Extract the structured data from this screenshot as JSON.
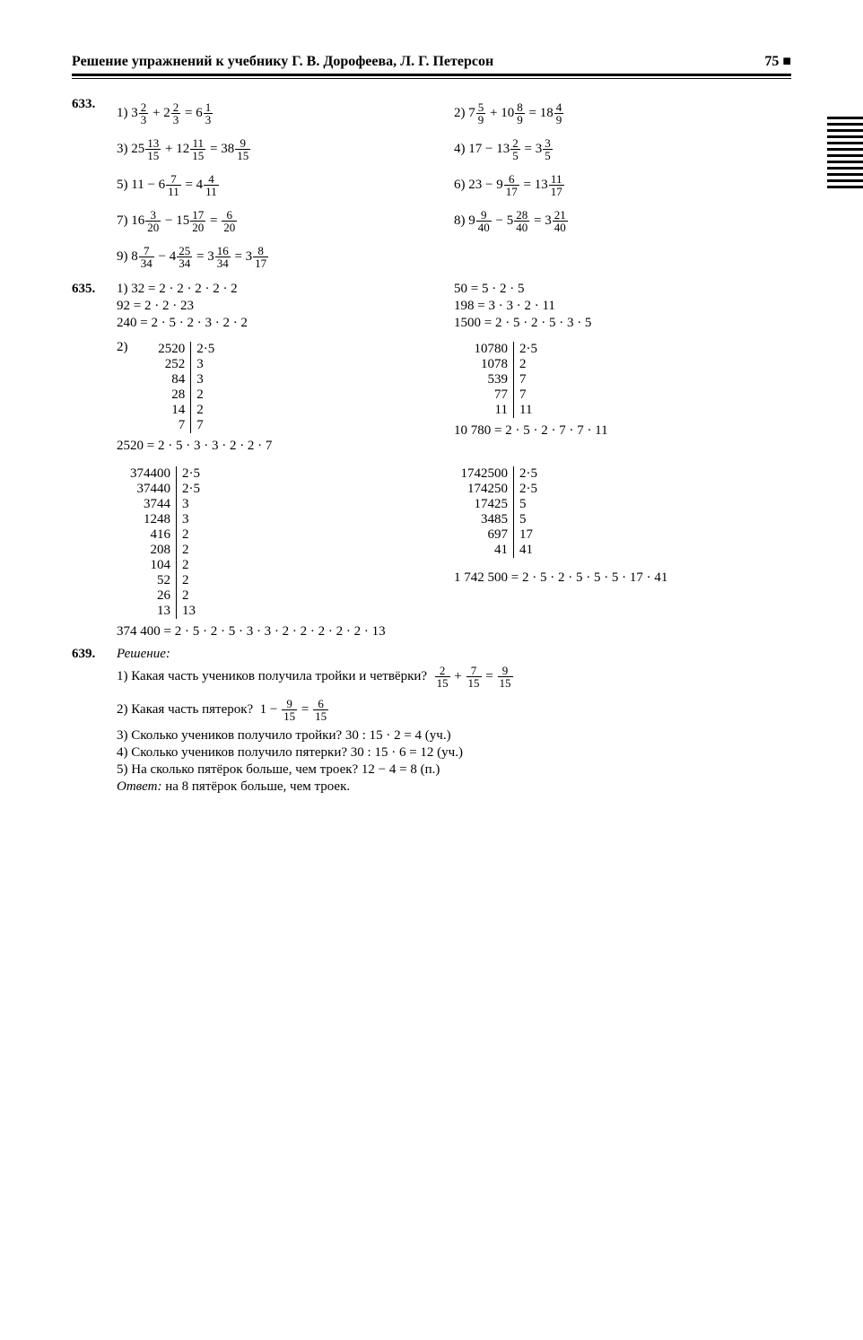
{
  "header": {
    "title": "Решение упражнений к учебнику Г. В. Дорофеева, Л. Г. Петерсон",
    "pagenum": "75"
  },
  "p633": {
    "num": "633.",
    "items": {
      "1": {
        "pre": "1)",
        "a_w": "3",
        "a_n": "2",
        "a_d": "3",
        "op": "+",
        "b_w": "2",
        "b_n": "2",
        "b_d": "3",
        "r_w": "6",
        "r_n": "1",
        "r_d": "3"
      },
      "2": {
        "pre": "2)",
        "a_w": "7",
        "a_n": "5",
        "a_d": "9",
        "op": "+",
        "b_w": "10",
        "b_n": "8",
        "b_d": "9",
        "r_w": "18",
        "r_n": "4",
        "r_d": "9"
      },
      "3": {
        "pre": "3)",
        "a_w": "25",
        "a_n": "13",
        "a_d": "15",
        "op": "+",
        "b_w": "12",
        "b_n": "11",
        "b_d": "15",
        "r_w": "38",
        "r_n": "9",
        "r_d": "15"
      },
      "4": {
        "pre": "4)",
        "a_w": "17",
        "op": "−",
        "b_w": "13",
        "b_n": "2",
        "b_d": "5",
        "r_w": "3",
        "r_n": "3",
        "r_d": "5"
      },
      "5": {
        "pre": "5)",
        "a_w": "11",
        "op": "−",
        "b_w": "6",
        "b_n": "7",
        "b_d": "11",
        "r_w": "4",
        "r_n": "4",
        "r_d": "11"
      },
      "6": {
        "pre": "6)",
        "a_w": "23",
        "op": "−",
        "b_w": "9",
        "b_n": "6",
        "b_d": "17",
        "r_w": "13",
        "r_n": "11",
        "r_d": "17"
      },
      "7": {
        "pre": "7)",
        "a_w": "16",
        "a_n": "3",
        "a_d": "20",
        "op": "−",
        "b_w": "15",
        "b_n": "17",
        "b_d": "20",
        "r_n": "6",
        "r_d": "20"
      },
      "8": {
        "pre": "8)",
        "a_w": "9",
        "a_n": "9",
        "a_d": "40",
        "op": "−",
        "b_w": "5",
        "b_n": "28",
        "b_d": "40",
        "r_w": "3",
        "r_n": "21",
        "r_d": "40"
      },
      "9": {
        "pre": "9)",
        "a_w": "8",
        "a_n": "7",
        "a_d": "34",
        "op": "−",
        "b_w": "4",
        "b_n": "25",
        "b_d": "34",
        "r_w": "3",
        "r_n": "16",
        "r_d": "34",
        "r2_w": "3",
        "r2_n": "8",
        "r2_d": "17"
      }
    }
  },
  "p635": {
    "num": "635.",
    "part1": {
      "l1": "1)  32 = 2 · 2 · 2 · 2 · 2",
      "l2": "92 = 2 · 2 · 23",
      "l3": "240 = 2 · 5 · 2 · 3 · 2 · 2",
      "r1": "50 = 5 · 2 · 5",
      "r2": "198 = 3 · 3 · 2 · 11",
      "r3": "1500 = 2 · 5 · 2 · 5 · 3 · 5"
    },
    "part2label": "2)",
    "tab1": {
      "rows": [
        [
          "2520",
          "2·5"
        ],
        [
          "252",
          "3"
        ],
        [
          "84",
          "3"
        ],
        [
          "28",
          "2"
        ],
        [
          "14",
          "2"
        ],
        [
          "7",
          "7"
        ]
      ],
      "result": "2520 = 2 · 5 · 3 · 3 · 2 · 2 · 7"
    },
    "tab2": {
      "rows": [
        [
          "10780",
          "2·5"
        ],
        [
          "1078",
          "2"
        ],
        [
          "539",
          "7"
        ],
        [
          "77",
          "7"
        ],
        [
          "11",
          "11"
        ]
      ],
      "result": "10 780 = 2 · 5 · 2 · 7 · 7 · 11"
    },
    "tab3": {
      "rows": [
        [
          "374400",
          "2·5"
        ],
        [
          "37440",
          "2·5"
        ],
        [
          "3744",
          "3"
        ],
        [
          "1248",
          "3"
        ],
        [
          "416",
          "2"
        ],
        [
          "208",
          "2"
        ],
        [
          "104",
          "2"
        ],
        [
          "52",
          "2"
        ],
        [
          "26",
          "2"
        ],
        [
          "13",
          "13"
        ]
      ],
      "result": "374 400 = 2 · 5 · 2 · 5 · 3 · 3 · 2 · 2 · 2 · 2 · 2 · 13"
    },
    "tab4": {
      "rows": [
        [
          "1742500",
          "2·5"
        ],
        [
          "174250",
          "2·5"
        ],
        [
          "17425",
          "5"
        ],
        [
          "3485",
          "5"
        ],
        [
          "697",
          "17"
        ],
        [
          "41",
          "41"
        ]
      ],
      "result": "1 742 500 = 2 · 5 · 2 · 5 · 5 · 5 · 17 · 41"
    }
  },
  "p639": {
    "num": "639.",
    "heading": "Решение:",
    "l1a": "1) Какая часть учеников получила тройки и четвёрки?",
    "l1f": {
      "a_n": "2",
      "a_d": "15",
      "b_n": "7",
      "b_d": "15",
      "r_n": "9",
      "r_d": "15"
    },
    "l2a": "2) Какая часть пятерок?",
    "l2f": {
      "a": "1",
      "b_n": "9",
      "b_d": "15",
      "r_n": "6",
      "r_d": "15"
    },
    "l3": "3) Сколько учеников получило тройки? 30 : 15 · 2 = 4 (уч.)",
    "l4": "4) Сколько учеников получило пятерки? 30 : 15 · 6 = 12 (уч.)",
    "l5": "5) На сколько пятёрок больше, чем троек? 12 − 4 = 8 (п.)",
    "ans_label": "Ответ:",
    "ans_text": " на 8 пятёрок больше, чем троек."
  }
}
